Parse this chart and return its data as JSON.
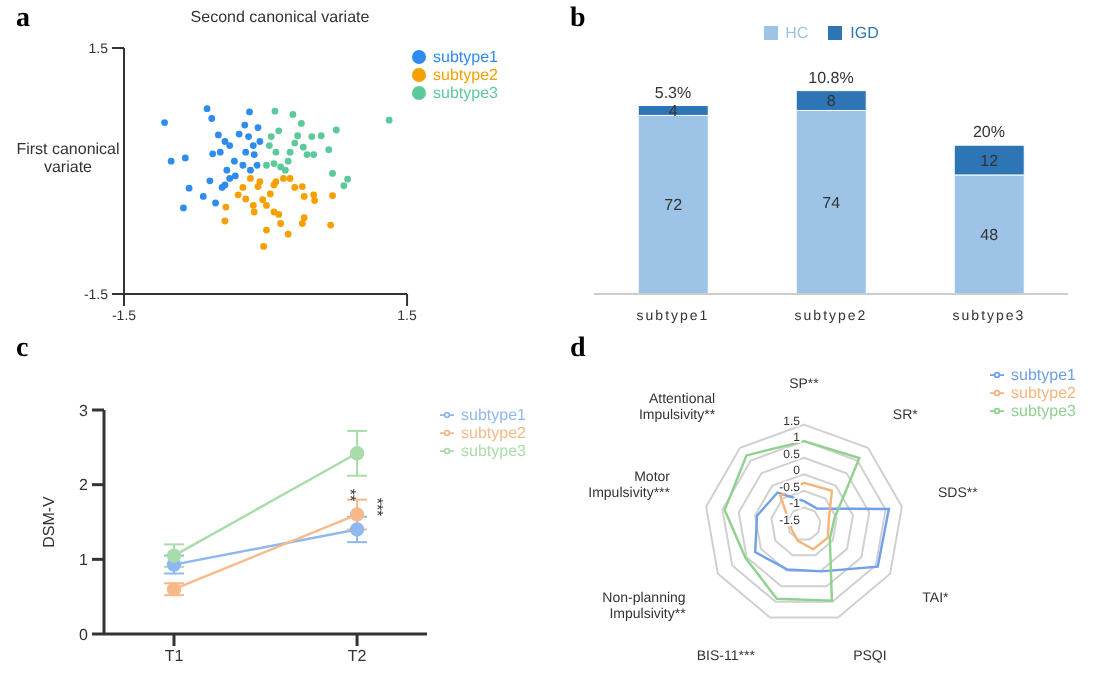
{
  "chart_data": [
    {
      "type": "scatter",
      "title": "a",
      "xlabel": "First canonical variate",
      "ylabel": "Second canonical variate",
      "xlim": [
        -1.5,
        1.5
      ],
      "ylim": [
        -1.5,
        1.5
      ],
      "xticks": [
        -1.5,
        1.5
      ],
      "yticks": [
        -1.5,
        1.5
      ],
      "legend": "top right",
      "marker": "circle",
      "series": [
        {
          "name": "subtype1",
          "color": "#2e8bf0",
          "x": [
            -1.07,
            -1.0,
            -0.85,
            -0.81,
            -0.87,
            -0.66,
            -0.59,
            -0.53,
            -0.62,
            -0.57,
            -0.5,
            -0.43,
            -0.48,
            -0.56,
            -0.38,
            -0.33,
            -0.41,
            -0.38,
            -0.43,
            -0.32,
            -0.28,
            -0.22,
            -0.17,
            -0.18,
            -0.21,
            -0.13,
            -0.12,
            -0.24,
            -0.16,
            -0.09,
            -0.06,
            -0.08,
            -0.46
          ],
          "values": [
            0.59,
            0.12,
            0.16,
            -0.21,
            -0.45,
            -0.31,
            -0.12,
            -0.39,
            0.76,
            0.64,
            0.44,
            0.36,
            0.23,
            0.21,
            0.31,
            0.12,
            0.01,
            -0.09,
            -0.17,
            -0.06,
            0.45,
            0.56,
            0.72,
            0.42,
            0.23,
            0.31,
            0.2,
            0.07,
            0.01,
            0.07,
            0.36,
            0.53,
            -0.2
          ]
        },
        {
          "name": "subtype2",
          "color": "#f5a000",
          "x": [
            -0.43,
            -0.42,
            -0.29,
            -0.24,
            -0.21,
            -0.13,
            -0.12,
            -0.16,
            -0.08,
            -0.03,
            0.01,
            0.05,
            0.09,
            0.11,
            0.19,
            0.26,
            0.31,
            0.39,
            0.41,
            0.51,
            0.52,
            0.71,
            0.41,
            0.39,
            0.14,
            0.16,
            0.24,
            0.01,
            -0.02,
            0.69,
            0.09,
            -0.06
          ],
          "values": [
            -0.61,
            -0.44,
            -0.29,
            -0.2,
            -0.34,
            -0.42,
            -0.5,
            -0.09,
            -0.19,
            -0.35,
            -0.42,
            -0.28,
            -0.17,
            -0.13,
            -0.09,
            -0.09,
            -0.2,
            -0.19,
            -0.31,
            -0.29,
            -0.36,
            -0.3,
            -0.57,
            -0.64,
            -0.53,
            -0.64,
            -0.77,
            -0.72,
            -0.92,
            -0.66,
            -0.5,
            -0.13
          ]
        },
        {
          "name": "subtype3",
          "color": "#5cc99a",
          "x": [
            0.1,
            0.29,
            0.38,
            0.14,
            0.06,
            0.04,
            0.11,
            0.09,
            0.16,
            0.24,
            0.26,
            0.31,
            0.34,
            0.4,
            0.44,
            0.49,
            0.51,
            0.59,
            0.67,
            0.75,
            0.71,
            0.87,
            0.83,
            1.31,
            0.21,
            0.01
          ],
          "values": [
            0.73,
            0.69,
            0.58,
            0.49,
            0.42,
            0.31,
            0.23,
            0.09,
            0.05,
            0.12,
            0.23,
            0.34,
            0.43,
            0.29,
            0.2,
            0.42,
            0.2,
            0.43,
            0.26,
            0.5,
            -0.03,
            -0.1,
            -0.18,
            0.62,
            0.01,
            0.07
          ]
        }
      ]
    },
    {
      "type": "bar",
      "title": "b",
      "categories": [
        "subtype1",
        "subtype2",
        "subtype3"
      ],
      "stacked": true,
      "data_labels": true,
      "legend": "top",
      "annotations": [
        {
          "text": "5.3%",
          "x": "subtype1",
          "y": 76
        },
        {
          "text": "10.8%",
          "x": "subtype2",
          "y": 82
        },
        {
          "text": "20%",
          "x": "subtype3",
          "y": 60
        }
      ],
      "series": [
        {
          "name": "HC",
          "color": "#9dc3e6",
          "values": [
            72,
            74,
            48
          ]
        },
        {
          "name": "IGD",
          "color": "#2e75b6",
          "values": [
            4,
            8,
            12
          ]
        }
      ]
    },
    {
      "type": "line",
      "title": "c",
      "ylabel": "DSM-V",
      "categories": [
        "T1",
        "T2"
      ],
      "ylim": [
        0,
        3
      ],
      "yticks": [
        0,
        1,
        2,
        3
      ],
      "legend": "right",
      "marker": "circle",
      "annotations": [
        "**",
        "***"
      ],
      "series": [
        {
          "name": "subtype1",
          "color": "#8fb8f0",
          "values": [
            0.93,
            1.4
          ],
          "errors": [
            0.12,
            0.17
          ]
        },
        {
          "name": "subtype2",
          "color": "#f7b98a",
          "values": [
            0.6,
            1.6
          ],
          "errors": [
            0.08,
            0.2
          ]
        },
        {
          "name": "subtype3",
          "color": "#a8dca8",
          "values": [
            1.05,
            2.42
          ],
          "errors": [
            0.15,
            0.3
          ]
        }
      ]
    },
    {
      "type": "radar",
      "title": "d",
      "categories": [
        "SP**",
        "SR*",
        "SDS**",
        "TAI*",
        "PSQI",
        "BIS-11***",
        "Non-planning Impulsivity**",
        "Motor Impulsivity***",
        "Attentional Impulsivity**"
      ],
      "ylim": [
        -1.5,
        1.5
      ],
      "yticks": [
        -1.5,
        -1,
        -0.5,
        0,
        0.5,
        1,
        1.5
      ],
      "legend": "top right",
      "series": [
        {
          "name": "subtype1",
          "color": "#6fa0e8",
          "values": [
            -0.81,
            -0.89,
            1.1,
            1.07,
            0.02,
            -0.04,
            0.2,
            -0.06,
            -0.26
          ]
        },
        {
          "name": "subtype2",
          "color": "#f5b47a",
          "values": [
            -0.26,
            -0.19,
            -0.74,
            -0.67,
            -0.69,
            -0.96,
            -1.09,
            -1.04,
            -0.39
          ]
        },
        {
          "name": "subtype3",
          "color": "#8fd18f",
          "values": [
            1.0,
            1.1,
            -0.57,
            -0.6,
            0.96,
            0.9,
            0.54,
            0.93,
            1.2
          ]
        }
      ]
    }
  ]
}
